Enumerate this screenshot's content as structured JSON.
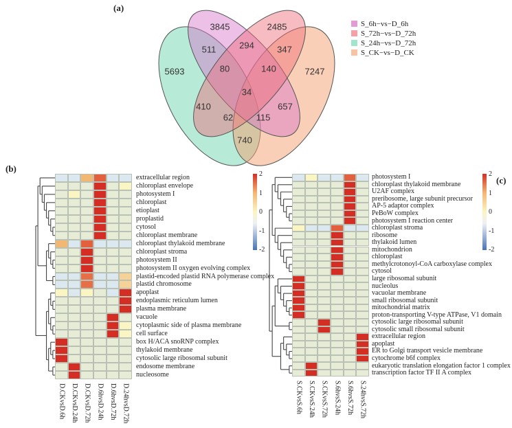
{
  "panels": {
    "a": "(a)",
    "b": "(b)",
    "c": "(c)"
  },
  "venn": {
    "sets": [
      {
        "name": "S_6h−vs−D_6h",
        "color": "#e29bd6"
      },
      {
        "name": "S_72h−vs−D_72h",
        "color": "#f4a0a6"
      },
      {
        "name": "S_24h−vs−D_72h",
        "color": "#a3e4cc"
      },
      {
        "name": "S_CK−vs−D_CK",
        "color": "#f8c3a3"
      }
    ],
    "regions": [
      "3845",
      "2485",
      "5693",
      "511",
      "294",
      "347",
      "7247",
      "80",
      "140",
      "34",
      "410",
      "657",
      "62",
      "115",
      "740"
    ]
  },
  "chart_data": [
    {
      "type": "heatmap",
      "title": "(b)",
      "columns": [
        "D.CKvsD.6h",
        "D.CKvsD.24h",
        "D.CKvsD.72h",
        "D.6hvsD.24h",
        "D.6hvsD.72h",
        "D.24hvsD.72h"
      ],
      "rows": [
        "extracellular region",
        "chloroplast envelope",
        "photosystem I",
        "chloroplast",
        "etioplast",
        "proplastid",
        "cytosol",
        "chloroplast membrane",
        "chloroplast thylakoid membrane",
        "chloroplast stroma",
        "photosystem II",
        "photosystem II oxygen evolving complex",
        "plastid-encoded plastid RNA polymerase complex",
        "plastid chromosome",
        "apoplast",
        "endoplasmic reticulum lumen",
        "plasma membrane",
        "vacuole",
        "cytoplasmic side of plasma membrane",
        "cell surface",
        "box H/ACA snoRNP complex",
        "thylakoid membrane",
        "cytosolic large ribosomal subunit",
        "endosome membrane",
        "nucleosome"
      ],
      "values": [
        [
          -0.3,
          -0.3,
          1,
          1.6,
          -0.3,
          -0.3
        ],
        [
          0,
          0,
          0,
          2,
          0,
          0.3
        ],
        [
          0,
          0.3,
          0,
          2,
          0,
          0
        ],
        [
          0,
          0,
          0,
          2,
          0,
          0
        ],
        [
          0,
          0,
          0,
          2,
          0,
          0
        ],
        [
          0,
          0,
          0,
          2,
          0,
          0
        ],
        [
          0,
          0,
          0,
          2,
          0,
          0
        ],
        [
          0,
          0,
          0,
          2,
          0,
          0
        ],
        [
          1,
          -0.3,
          1.6,
          -0.3,
          -0.3,
          -0.3
        ],
        [
          0,
          0,
          2,
          0,
          0,
          0
        ],
        [
          0,
          0,
          2,
          0,
          0,
          0
        ],
        [
          0,
          0,
          2,
          0,
          0,
          0
        ],
        [
          -0.3,
          -0.3,
          1.5,
          -0.3,
          -0.3,
          0.7
        ],
        [
          -0.3,
          -0.3,
          1.5,
          -0.3,
          -0.3,
          0.7
        ],
        [
          0.3,
          -0.3,
          0.3,
          0,
          -0.3,
          2
        ],
        [
          0,
          0,
          0,
          0,
          0,
          2
        ],
        [
          0,
          0,
          0,
          0,
          0,
          2
        ],
        [
          0,
          0,
          0,
          0,
          2,
          0
        ],
        [
          0,
          0,
          0,
          0,
          2,
          0.3
        ],
        [
          0,
          0,
          0,
          0,
          2,
          0.3
        ],
        [
          2,
          0,
          0,
          0,
          0,
          0
        ],
        [
          2,
          0,
          0,
          0,
          0,
          0
        ],
        [
          2,
          0,
          0,
          0,
          0,
          0
        ],
        [
          0,
          2,
          0,
          0,
          0,
          0
        ],
        [
          0,
          2,
          0,
          0,
          0,
          0
        ]
      ],
      "colorbar": {
        "ticks": [
          "2",
          "1",
          "0",
          "-1",
          "-2"
        ],
        "range": [
          -2,
          2
        ]
      }
    },
    {
      "type": "heatmap",
      "title": "(c)",
      "columns": [
        "S.CKvsS.6h",
        "S.CKvsS.24h",
        "S.CKvsS.72h",
        "S.6hvsS.24h",
        "S.6hvsS.72h",
        "S.24hvsS.72h"
      ],
      "rows": [
        "photosystem I",
        "chloroplast thylakoid membrane",
        "U2AF complex",
        "preribosome, large subunit precursor",
        "AP-5 adaptor complex",
        "PeBoW complex",
        "photosystem I reaction center",
        "chloroplast stroma",
        "ribosome",
        "thylakoid lumen",
        "mitochondrion",
        "chloroplast",
        "methylcrotonoyl-CoA carboxylase complex",
        "cytosol",
        "large ribosomal subunit",
        "nucleolus",
        "vacuolar membrane",
        "small ribosomal subunit",
        "mitochondrial matrix",
        "proton-transporting V-type ATPase, V1 domain",
        "cytosolic large ribosomal subunit",
        "cytosolic small ribosomal subunit",
        "extracellular region",
        "apoplast",
        "ER to Golgi transport vesicle membrane",
        "cytochrome b6f complex",
        "eukaryotic translation elongation factor 1 complex",
        "transcription factor TF II A complex"
      ],
      "values": [
        [
          -0.3,
          0.3,
          -0.3,
          -0.3,
          1.6,
          -0.3
        ],
        [
          0,
          0,
          0,
          0,
          2,
          0
        ],
        [
          0,
          0,
          0,
          0,
          2,
          0
        ],
        [
          0,
          0,
          0,
          0,
          2,
          0
        ],
        [
          0,
          0,
          0,
          0,
          2,
          0
        ],
        [
          0,
          0,
          0,
          0,
          2,
          0
        ],
        [
          0,
          0,
          0,
          0,
          2,
          0
        ],
        [
          0.3,
          -0.3,
          -0.3,
          1.6,
          -0.3,
          -0.3
        ],
        [
          0,
          0,
          0,
          2,
          0,
          0
        ],
        [
          0,
          0,
          0,
          2,
          0,
          0
        ],
        [
          0,
          0,
          0,
          2,
          0,
          0
        ],
        [
          0,
          0,
          0,
          2,
          0,
          0
        ],
        [
          0,
          0,
          0,
          2,
          0,
          0
        ],
        [
          0,
          0,
          0,
          2,
          0,
          0
        ],
        [
          2,
          0,
          0,
          0,
          0,
          0
        ],
        [
          2,
          0,
          0,
          0,
          0,
          0
        ],
        [
          2,
          0,
          0,
          0,
          0,
          0
        ],
        [
          2,
          0,
          0,
          0,
          0,
          0
        ],
        [
          2,
          0,
          0,
          0,
          0,
          0
        ],
        [
          2,
          0,
          0,
          0,
          0,
          0
        ],
        [
          0,
          0,
          2,
          0,
          0,
          0
        ],
        [
          0,
          0,
          2,
          0,
          0,
          0
        ],
        [
          0,
          0,
          0,
          0,
          0,
          2
        ],
        [
          0,
          0,
          0,
          0,
          0,
          2
        ],
        [
          0,
          0,
          0,
          0,
          0,
          2
        ],
        [
          0,
          0,
          0,
          0,
          0,
          2
        ],
        [
          0,
          2,
          0,
          0,
          0,
          0
        ],
        [
          0,
          2,
          0,
          0,
          0,
          0
        ]
      ],
      "colorbar": {
        "ticks": [
          "2",
          "1",
          "0",
          "-1",
          "-2"
        ],
        "range": [
          -2,
          2
        ]
      }
    }
  ]
}
